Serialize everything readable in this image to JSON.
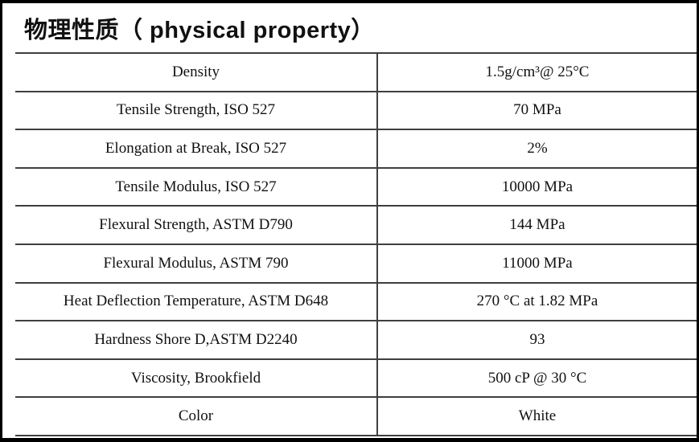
{
  "page": {
    "title": "物理性质（ physical property）"
  },
  "table": {
    "rows": [
      {
        "property": "Density",
        "value": "1.5g/cm³@ 25°C"
      },
      {
        "property": "Tensile Strength, ISO 527",
        "value": "70 MPa"
      },
      {
        "property": "Elongation at Break, ISO 527",
        "value": "2%"
      },
      {
        "property": "Tensile Modulus, ISO 527",
        "value": "10000 MPa"
      },
      {
        "property": "Flexural Strength, ASTM D790",
        "value": "144 MPa"
      },
      {
        "property": "Flexural Modulus, ASTM 790",
        "value": "11000 MPa"
      },
      {
        "property": "Heat Deflection Temperature, ASTM D648",
        "value": "270 °C at 1.82 MPa"
      },
      {
        "property": "Hardness Shore D,ASTM D2240",
        "value": "93"
      },
      {
        "property": "Viscosity, Brookfield",
        "value": "500 cP @ 30 °C"
      },
      {
        "property": "Color",
        "value": "White"
      }
    ]
  },
  "colors": {
    "frame": "#000000",
    "rule_line": "#3f3f3f",
    "text": "#111111",
    "background": "#ffffff"
  }
}
